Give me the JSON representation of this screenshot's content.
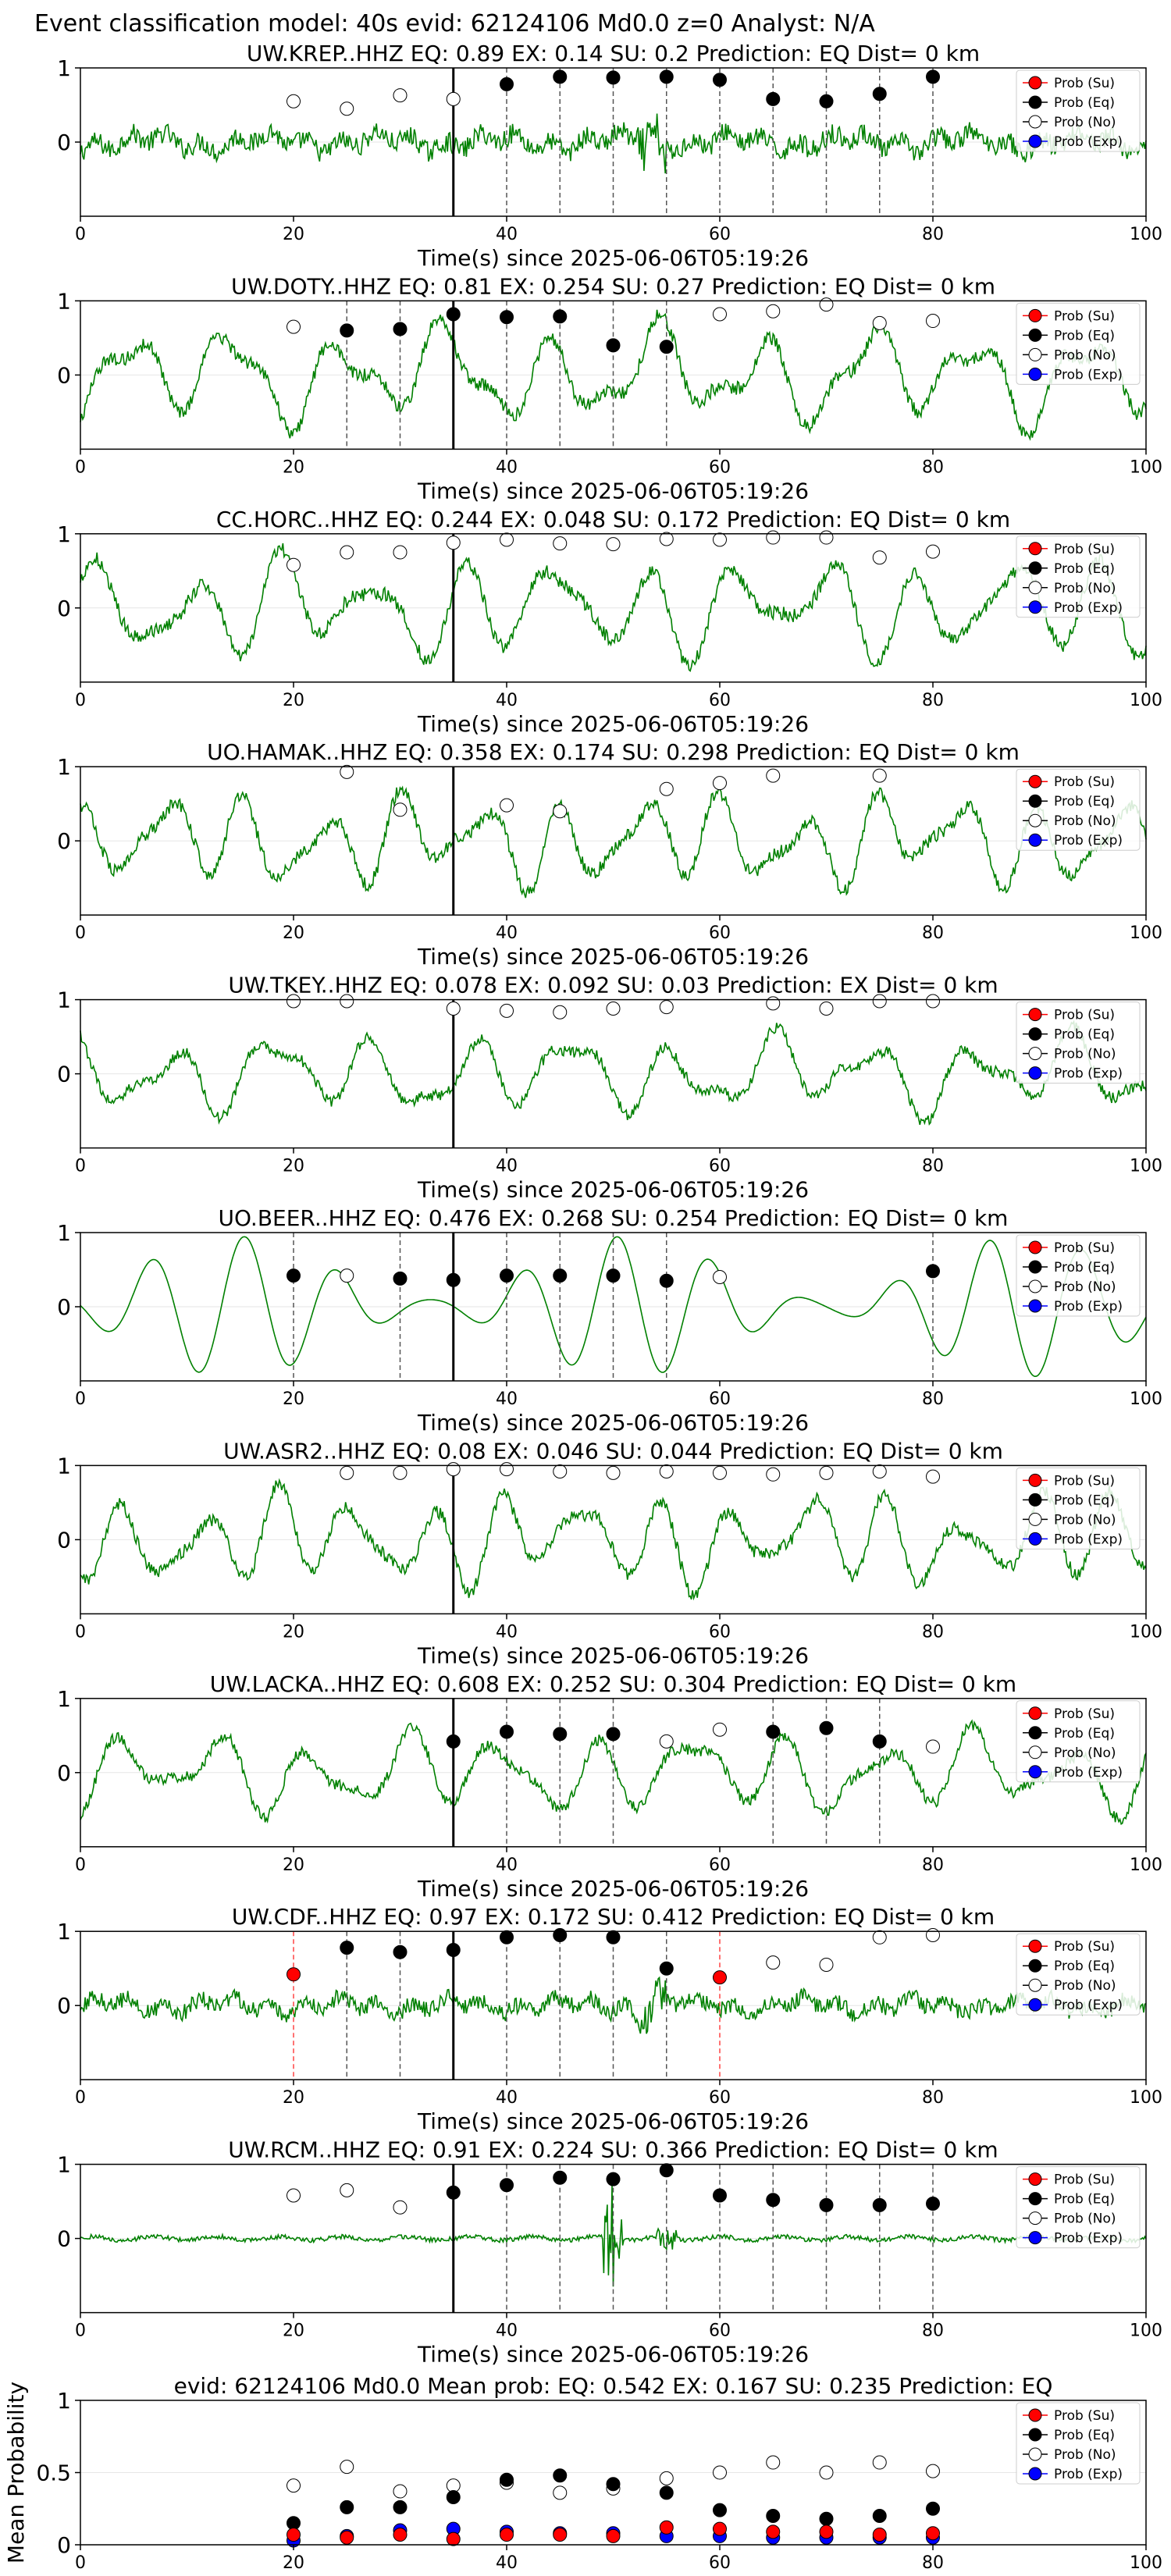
{
  "suptitle": "Event classification model: 40s evid: 62124106 Md0.0 z=0 Analyst: N/A",
  "xlabel": "Time(s) since 2025-06-06T05:19:26",
  "legend_labels": [
    "Prob (Su)",
    "Prob (Eq)",
    "Prob (No)",
    "Prob (Exp)"
  ],
  "colors": {
    "waveform": "#008000",
    "su": "#ff0000",
    "eq": "#000000",
    "no": "#ffffff",
    "exp": "#0000ff",
    "pick": "#000000",
    "dashed": "#555555",
    "dashed_red": "#ff4444"
  },
  "chart_data": [
    {
      "type": "line",
      "title": "UW.KREP..HHZ   EQ: 0.89   EX: 0.14   SU: 0.2   Prediction: EQ    Dist= 0 km",
      "xlim": [
        0,
        100
      ],
      "ylim": [
        -1,
        1
      ],
      "x_ticks": [
        0,
        20,
        40,
        60,
        80,
        100
      ],
      "y_ticks": [
        1,
        0
      ],
      "pick_time": 35,
      "waveform_style": "noisy",
      "waveform_amp": 0.3,
      "dashed_lines": [
        40,
        45,
        50,
        55,
        60,
        65,
        70,
        75,
        80
      ],
      "dashed_red_lines": [],
      "series": [
        {
          "name": "Prob (Eq)",
          "x": [
            40,
            45,
            50,
            55,
            60,
            65,
            70,
            75,
            80
          ],
          "values": [
            0.78,
            0.88,
            0.87,
            0.88,
            0.84,
            0.58,
            0.55,
            0.65,
            0.88
          ]
        },
        {
          "name": "Prob (No)",
          "x": [
            20,
            25,
            30,
            35
          ],
          "values": [
            0.55,
            0.45,
            0.63,
            0.58
          ]
        }
      ]
    },
    {
      "type": "line",
      "title": "UW.DOTY..HHZ   EQ: 0.81   EX: 0.254   SU: 0.27   Prediction: EQ    Dist= 0 km",
      "xlim": [
        0,
        100
      ],
      "ylim": [
        -1,
        1
      ],
      "x_ticks": [
        0,
        20,
        40,
        60,
        80,
        100
      ],
      "y_ticks": [
        1,
        0
      ],
      "pick_time": 35,
      "waveform_style": "oscillating",
      "waveform_amp": 0.75,
      "dashed_lines": [
        25,
        30,
        35,
        40,
        45,
        50,
        55
      ],
      "dashed_red_lines": [],
      "series": [
        {
          "name": "Prob (Eq)",
          "x": [
            25,
            30,
            35,
            40,
            45,
            50,
            55
          ],
          "values": [
            0.6,
            0.62,
            0.82,
            0.78,
            0.79,
            0.4,
            0.38
          ]
        },
        {
          "name": "Prob (No)",
          "x": [
            20,
            60,
            65,
            70,
            75,
            80
          ],
          "values": [
            0.65,
            0.82,
            0.86,
            0.95,
            0.7,
            0.73
          ]
        }
      ]
    },
    {
      "type": "line",
      "title": "CC.HORC..HHZ   EQ: 0.244   EX: 0.048   SU: 0.172   Prediction: EQ    Dist= 0 km",
      "xlim": [
        0,
        100
      ],
      "ylim": [
        -1,
        1
      ],
      "x_ticks": [
        0,
        20,
        40,
        60,
        80,
        100
      ],
      "y_ticks": [
        1,
        0
      ],
      "pick_time": 35,
      "waveform_style": "oscillating",
      "waveform_amp": 0.75,
      "dashed_lines": [],
      "dashed_red_lines": [],
      "series": [
        {
          "name": "Prob (No)",
          "x": [
            20,
            25,
            30,
            35,
            40,
            45,
            50,
            55,
            60,
            65,
            70,
            75,
            80
          ],
          "values": [
            0.58,
            0.75,
            0.75,
            0.88,
            0.92,
            0.87,
            0.86,
            0.93,
            0.92,
            0.95,
            0.95,
            0.68,
            0.76
          ]
        }
      ]
    },
    {
      "type": "line",
      "title": "UO.HAMAK..HHZ   EQ: 0.358   EX: 0.174   SU: 0.298   Prediction: EQ    Dist= 0 km",
      "xlim": [
        0,
        100
      ],
      "ylim": [
        -1,
        1
      ],
      "x_ticks": [
        0,
        20,
        40,
        60,
        80,
        100
      ],
      "y_ticks": [
        1,
        0
      ],
      "pick_time": 35,
      "waveform_style": "oscillating",
      "waveform_amp": 0.7,
      "dashed_lines": [],
      "dashed_red_lines": [],
      "series": [
        {
          "name": "Prob (No)",
          "x": [
            25,
            30,
            40,
            45,
            55,
            60,
            65,
            75
          ],
          "values": [
            0.93,
            0.42,
            0.48,
            0.4,
            0.7,
            0.78,
            0.88,
            0.88
          ]
        }
      ]
    },
    {
      "type": "line",
      "title": "UW.TKEY..HHZ   EQ: 0.078   EX: 0.092   SU: 0.03   Prediction: EX    Dist= 0 km",
      "xlim": [
        0,
        100
      ],
      "ylim": [
        -1,
        1
      ],
      "x_ticks": [
        0,
        20,
        40,
        60,
        80,
        100
      ],
      "y_ticks": [
        1,
        0
      ],
      "pick_time": 35,
      "waveform_style": "oscillating",
      "waveform_amp": 0.6,
      "dashed_lines": [],
      "dashed_red_lines": [],
      "series": [
        {
          "name": "Prob (No)",
          "x": [
            20,
            25,
            35,
            40,
            45,
            50,
            55,
            65,
            70,
            75,
            80
          ],
          "values": [
            0.98,
            0.98,
            0.88,
            0.85,
            0.83,
            0.88,
            0.9,
            0.95,
            0.88,
            0.98,
            0.98
          ]
        }
      ]
    },
    {
      "type": "line",
      "title": "UO.BEER..HHZ   EQ: 0.476   EX: 0.268   SU: 0.254   Prediction: EQ    Dist= 0 km",
      "xlim": [
        0,
        100
      ],
      "ylim": [
        -1,
        1
      ],
      "x_ticks": [
        0,
        20,
        40,
        60,
        80,
        100
      ],
      "y_ticks": [
        1,
        0
      ],
      "pick_time": 35,
      "waveform_style": "smooth",
      "waveform_amp": 0.95,
      "dashed_lines": [
        20,
        30,
        40,
        45,
        50,
        55,
        80
      ],
      "dashed_red_lines": [],
      "series": [
        {
          "name": "Prob (Eq)",
          "x": [
            20,
            30,
            35,
            40,
            45,
            50,
            55,
            80
          ],
          "values": [
            0.42,
            0.38,
            0.36,
            0.42,
            0.42,
            0.42,
            0.35,
            0.48
          ]
        },
        {
          "name": "Prob (No)",
          "x": [
            25,
            60
          ],
          "values": [
            0.42,
            0.4
          ]
        }
      ]
    },
    {
      "type": "line",
      "title": "UW.ASR2..HHZ   EQ: 0.08   EX: 0.046   SU: 0.044   Prediction: EQ    Dist= 0 km",
      "xlim": [
        0,
        100
      ],
      "ylim": [
        -1,
        1
      ],
      "x_ticks": [
        0,
        20,
        40,
        60,
        80,
        100
      ],
      "y_ticks": [
        1,
        0
      ],
      "pick_time": 35,
      "waveform_style": "oscillating",
      "waveform_amp": 0.7,
      "dashed_lines": [],
      "dashed_red_lines": [],
      "series": [
        {
          "name": "Prob (No)",
          "x": [
            25,
            30,
            35,
            40,
            45,
            50,
            55,
            60,
            65,
            70,
            75,
            80
          ],
          "values": [
            0.9,
            0.9,
            0.95,
            0.95,
            0.92,
            0.9,
            0.92,
            0.9,
            0.88,
            0.9,
            0.92,
            0.85
          ]
        }
      ]
    },
    {
      "type": "line",
      "title": "UW.LACKA..HHZ   EQ: 0.608   EX: 0.252   SU: 0.304   Prediction: EQ    Dist= 0 km",
      "xlim": [
        0,
        100
      ],
      "ylim": [
        -1,
        1
      ],
      "x_ticks": [
        0,
        20,
        40,
        60,
        80,
        100
      ],
      "y_ticks": [
        1,
        0
      ],
      "pick_time": 35,
      "waveform_style": "oscillating",
      "waveform_amp": 0.6,
      "dashed_lines": [
        40,
        45,
        50,
        65,
        70,
        75
      ],
      "dashed_red_lines": [],
      "series": [
        {
          "name": "Prob (Eq)",
          "x": [
            35,
            40,
            45,
            50,
            65,
            70,
            75
          ],
          "values": [
            0.42,
            0.55,
            0.52,
            0.52,
            0.55,
            0.6,
            0.42
          ]
        },
        {
          "name": "Prob (No)",
          "x": [
            55,
            60,
            80
          ],
          "values": [
            0.42,
            0.58,
            0.35
          ]
        }
      ]
    },
    {
      "type": "line",
      "title": "UW.CDF..HHZ   EQ: 0.97   EX: 0.172   SU: 0.412   Prediction: EQ    Dist= 0 km",
      "xlim": [
        0,
        100
      ],
      "ylim": [
        -1,
        1
      ],
      "x_ticks": [
        0,
        20,
        40,
        60,
        80,
        100
      ],
      "y_ticks": [
        1,
        0
      ],
      "pick_time": 35,
      "waveform_style": "noisy",
      "waveform_amp": 0.25,
      "dashed_lines": [
        25,
        30,
        40,
        45,
        50,
        55
      ],
      "dashed_red_lines": [
        20,
        60
      ],
      "series": [
        {
          "name": "Prob (Su)",
          "x": [
            20,
            60
          ],
          "values": [
            0.42,
            0.38
          ]
        },
        {
          "name": "Prob (Eq)",
          "x": [
            25,
            30,
            35,
            40,
            45,
            50,
            55
          ],
          "values": [
            0.78,
            0.72,
            0.75,
            0.92,
            0.95,
            0.92,
            0.5
          ]
        },
        {
          "name": "Prob (No)",
          "x": [
            65,
            70,
            75,
            80
          ],
          "values": [
            0.58,
            0.55,
            0.92,
            0.95
          ]
        }
      ]
    },
    {
      "type": "line",
      "title": "UW.RCM..HHZ   EQ: 0.91   EX: 0.224   SU: 0.366   Prediction: EQ    Dist= 0 km",
      "xlim": [
        0,
        100
      ],
      "ylim": [
        -1,
        1
      ],
      "x_ticks": [
        0,
        20,
        40,
        60,
        80,
        100
      ],
      "y_ticks": [
        1,
        0
      ],
      "pick_time": 35,
      "waveform_style": "flat",
      "waveform_amp": 0.06,
      "dashed_lines": [
        40,
        45,
        50,
        55,
        60,
        65,
        70,
        75,
        80
      ],
      "dashed_red_lines": [],
      "series": [
        {
          "name": "Prob (Eq)",
          "x": [
            35,
            40,
            45,
            50,
            55,
            60,
            65,
            70,
            75,
            80
          ],
          "values": [
            0.62,
            0.72,
            0.82,
            0.8,
            0.92,
            0.58,
            0.52,
            0.45,
            0.45,
            0.47
          ]
        },
        {
          "name": "Prob (No)",
          "x": [
            20,
            25,
            30
          ],
          "values": [
            0.58,
            0.65,
            0.42
          ]
        }
      ]
    },
    {
      "type": "scatter",
      "title": "evid: 62124106  Md0.0   Mean prob:   EQ: 0.542  EX: 0.167  SU: 0.235   Prediction: EQ",
      "ylabel": "Mean Probability",
      "xlim": [
        0,
        100
      ],
      "ylim": [
        0,
        1
      ],
      "x_ticks": [
        0,
        20,
        40,
        60,
        80,
        100
      ],
      "y_ticks": [
        1,
        0.5,
        0
      ],
      "series": [
        {
          "name": "Prob (No)",
          "x": [
            20,
            25,
            30,
            35,
            40,
            45,
            50,
            55,
            60,
            65,
            70,
            75,
            80
          ],
          "values": [
            0.41,
            0.54,
            0.37,
            0.41,
            0.43,
            0.36,
            0.39,
            0.46,
            0.5,
            0.57,
            0.5,
            0.57,
            0.51
          ]
        },
        {
          "name": "Prob (Eq)",
          "x": [
            20,
            25,
            30,
            35,
            40,
            45,
            50,
            55,
            60,
            65,
            70,
            75,
            80
          ],
          "values": [
            0.15,
            0.26,
            0.26,
            0.33,
            0.45,
            0.48,
            0.42,
            0.36,
            0.24,
            0.2,
            0.18,
            0.2,
            0.25
          ]
        },
        {
          "name": "Prob (Exp)",
          "x": [
            20,
            25,
            30,
            35,
            40,
            45,
            50,
            55,
            60,
            65,
            70,
            75,
            80
          ],
          "values": [
            0.03,
            0.06,
            0.1,
            0.11,
            0.09,
            0.08,
            0.08,
            0.06,
            0.06,
            0.05,
            0.05,
            0.05,
            0.05
          ]
        },
        {
          "name": "Prob (Su)",
          "x": [
            20,
            25,
            30,
            35,
            40,
            45,
            50,
            55,
            60,
            65,
            70,
            75,
            80
          ],
          "values": [
            0.07,
            0.05,
            0.07,
            0.04,
            0.07,
            0.07,
            0.06,
            0.12,
            0.11,
            0.09,
            0.09,
            0.07,
            0.08
          ]
        }
      ]
    }
  ]
}
